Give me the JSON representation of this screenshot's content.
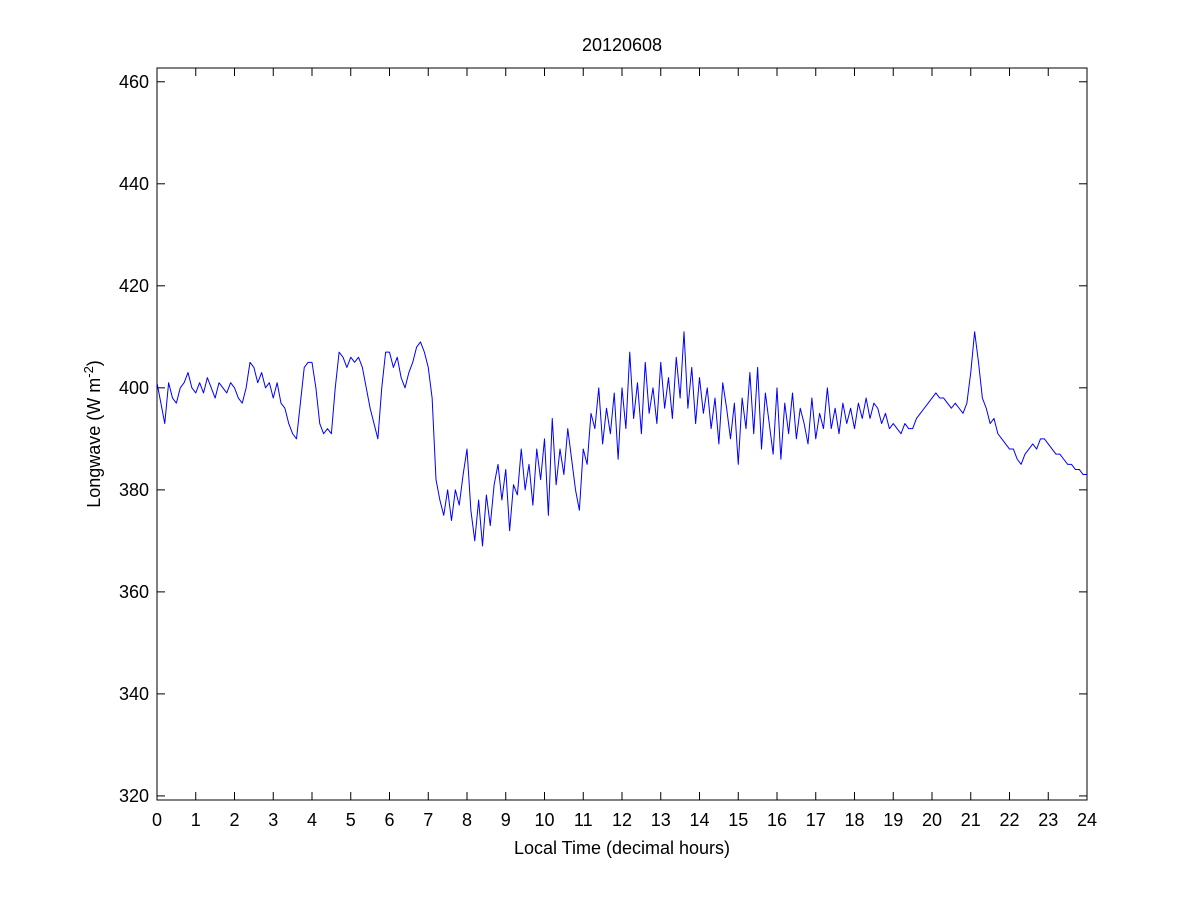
{
  "chart_data": {
    "type": "line",
    "title": "20120608",
    "x_label": "Local Time (decimal hours)",
    "y_label": [
      "Longwave (W m",
      "-2",
      ")"
    ],
    "xlim": [
      0,
      24
    ],
    "xticks": [
      0,
      1,
      2,
      3,
      4,
      5,
      6,
      7,
      8,
      9,
      10,
      11,
      12,
      13,
      14,
      15,
      16,
      17,
      18,
      19,
      20,
      21,
      22,
      23,
      24
    ],
    "ylim": [
      319.2,
      462.7
    ],
    "yticks": [
      320,
      340,
      360,
      380,
      400,
      420,
      440,
      460
    ],
    "grid": false,
    "x": [
      0,
      0.1,
      0.2,
      0.3,
      0.4,
      0.5,
      0.6,
      0.7,
      0.8,
      0.9,
      1,
      1.1,
      1.2,
      1.3,
      1.4,
      1.5,
      1.6,
      1.7,
      1.8,
      1.9,
      2,
      2.1,
      2.2,
      2.3,
      2.4,
      2.5,
      2.6,
      2.7,
      2.8,
      2.9,
      3,
      3.1,
      3.2,
      3.3,
      3.4,
      3.5,
      3.6,
      3.7,
      3.8,
      3.9,
      4,
      4.1,
      4.2,
      4.3,
      4.4,
      4.5,
      4.6,
      4.7,
      4.8,
      4.9,
      5,
      5.1,
      5.2,
      5.3,
      5.4,
      5.5,
      5.6,
      5.7,
      5.8,
      5.9,
      6,
      6.1,
      6.2,
      6.3,
      6.4,
      6.5,
      6.6,
      6.7,
      6.8,
      6.9,
      7,
      7.1,
      7.2,
      7.3,
      7.4,
      7.5,
      7.6,
      7.7,
      7.8,
      7.9,
      8,
      8.1,
      8.2,
      8.3,
      8.4,
      8.5,
      8.6,
      8.7,
      8.8,
      8.9,
      9,
      9.1,
      9.2,
      9.3,
      9.4,
      9.5,
      9.6,
      9.7,
      9.8,
      9.9,
      10,
      10.1,
      10.2,
      10.3,
      10.4,
      10.5,
      10.6,
      10.7,
      10.8,
      10.9,
      11,
      11.1,
      11.2,
      11.3,
      11.4,
      11.5,
      11.6,
      11.7,
      11.8,
      11.9,
      12,
      12.1,
      12.2,
      12.3,
      12.4,
      12.5,
      12.6,
      12.7,
      12.8,
      12.9,
      13,
      13.1,
      13.2,
      13.3,
      13.4,
      13.5,
      13.6,
      13.7,
      13.8,
      13.9,
      14,
      14.1,
      14.2,
      14.3,
      14.4,
      14.5,
      14.6,
      14.7,
      14.8,
      14.9,
      15,
      15.1,
      15.2,
      15.3,
      15.4,
      15.5,
      15.6,
      15.7,
      15.8,
      15.9,
      16,
      16.1,
      16.2,
      16.3,
      16.4,
      16.5,
      16.6,
      16.7,
      16.8,
      16.9,
      17,
      17.1,
      17.2,
      17.3,
      17.4,
      17.5,
      17.6,
      17.7,
      17.8,
      17.9,
      18,
      18.1,
      18.2,
      18.3,
      18.4,
      18.5,
      18.6,
      18.7,
      18.8,
      18.9,
      19,
      19.1,
      19.2,
      19.3,
      19.4,
      19.5,
      19.6,
      19.7,
      19.8,
      19.9,
      20,
      20.1,
      20.2,
      20.3,
      20.4,
      20.5,
      20.6,
      20.7,
      20.8,
      20.9,
      21,
      21.1,
      21.2,
      21.3,
      21.4,
      21.5,
      21.6,
      21.7,
      21.8,
      21.9,
      22,
      22.1,
      22.2,
      22.3,
      22.4,
      22.5,
      22.6,
      22.7,
      22.8,
      22.9,
      23,
      23.1,
      23.2,
      23.3,
      23.4,
      23.5,
      23.6,
      23.7,
      23.8,
      23.9,
      24
    ],
    "series": [
      {
        "color": "#0000ff",
        "values": [
          401,
          397,
          393,
          401,
          398,
          397,
          400,
          401,
          403,
          400,
          399,
          401,
          399,
          402,
          400,
          398,
          401,
          400,
          399,
          401,
          400,
          398,
          397,
          400,
          405,
          404,
          401,
          403,
          400,
          401,
          398,
          401,
          397,
          396,
          393,
          391,
          390,
          397,
          404,
          405,
          405,
          400,
          393,
          391,
          392,
          391,
          400,
          407,
          406,
          404,
          406,
          405,
          406,
          404,
          400,
          396,
          393,
          390,
          400,
          407,
          407,
          404,
          406,
          402,
          400,
          403,
          405,
          408,
          409,
          407,
          404,
          398,
          382,
          378,
          375,
          380,
          374,
          380,
          377,
          383,
          388,
          376,
          370,
          378,
          369,
          379,
          373,
          381,
          385,
          378,
          384,
          372,
          381,
          379,
          388,
          380,
          385,
          377,
          388,
          382,
          390,
          375,
          394,
          381,
          388,
          383,
          392,
          386,
          380,
          376,
          388,
          385,
          395,
          392,
          400,
          389,
          396,
          391,
          399,
          386,
          400,
          392,
          407,
          394,
          401,
          391,
          405,
          395,
          400,
          393,
          405,
          396,
          402,
          394,
          406,
          398,
          411,
          396,
          404,
          393,
          402,
          395,
          400,
          392,
          398,
          389,
          401,
          396,
          390,
          397,
          385,
          398,
          392,
          403,
          391,
          404,
          388,
          399,
          393,
          387,
          400,
          386,
          397,
          391,
          399,
          390,
          396,
          393,
          389,
          398,
          390,
          395,
          392,
          400,
          392,
          396,
          391,
          397,
          393,
          396,
          392,
          397,
          394,
          398,
          394,
          397,
          396,
          393,
          395,
          392,
          393,
          392,
          391,
          393,
          392,
          392,
          394,
          395,
          396,
          397,
          398,
          399,
          398,
          398,
          397,
          396,
          397,
          396,
          395,
          397,
          403,
          411,
          405,
          398,
          396,
          393,
          394,
          391,
          390,
          389,
          388,
          388,
          386,
          385,
          387,
          388,
          389,
          388,
          390,
          390,
          389,
          388,
          387,
          387,
          386,
          385,
          385,
          384,
          384,
          383,
          383
        ]
      }
    ]
  }
}
